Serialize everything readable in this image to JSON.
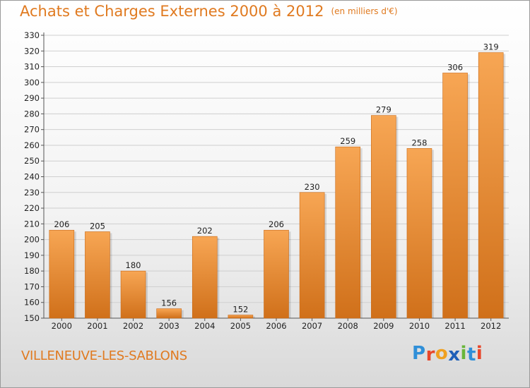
{
  "header": {
    "title": "Achats et Charges Externes 2000 à 2012",
    "unit": "(en milliers d'€)"
  },
  "footer": {
    "city": "VILLENEUVE-LES-SABLONS",
    "logo": {
      "letters": [
        {
          "ch": "P",
          "color": "#2f8fd8"
        },
        {
          "ch": "r",
          "color": "#e8462a"
        },
        {
          "ch": "o",
          "color": "#f0a020"
        },
        {
          "ch": "x",
          "color": "#1f5fb8"
        },
        {
          "ch": "i",
          "color": "#69b63a"
        },
        {
          "ch": "t",
          "color": "#2f8fd8"
        },
        {
          "ch": "i",
          "color": "#e8462a"
        }
      ]
    }
  },
  "colors": {
    "title": "#e07a20",
    "bar_light": "#f7a654",
    "bar_dark": "#d0701a",
    "grid": "#cfcfcf"
  },
  "chart_data": {
    "type": "bar",
    "categories": [
      "2000",
      "2001",
      "2002",
      "2003",
      "2004",
      "2005",
      "2006",
      "2007",
      "2008",
      "2009",
      "2010",
      "2011",
      "2012"
    ],
    "values": [
      206,
      205,
      180,
      156,
      202,
      152,
      206,
      230,
      259,
      279,
      258,
      306,
      319
    ],
    "yticks": [
      150,
      160,
      170,
      180,
      190,
      200,
      210,
      220,
      230,
      240,
      250,
      260,
      270,
      280,
      290,
      300,
      310,
      320,
      330
    ],
    "ylim": [
      150,
      330
    ],
    "grid": true,
    "legend": "none"
  }
}
